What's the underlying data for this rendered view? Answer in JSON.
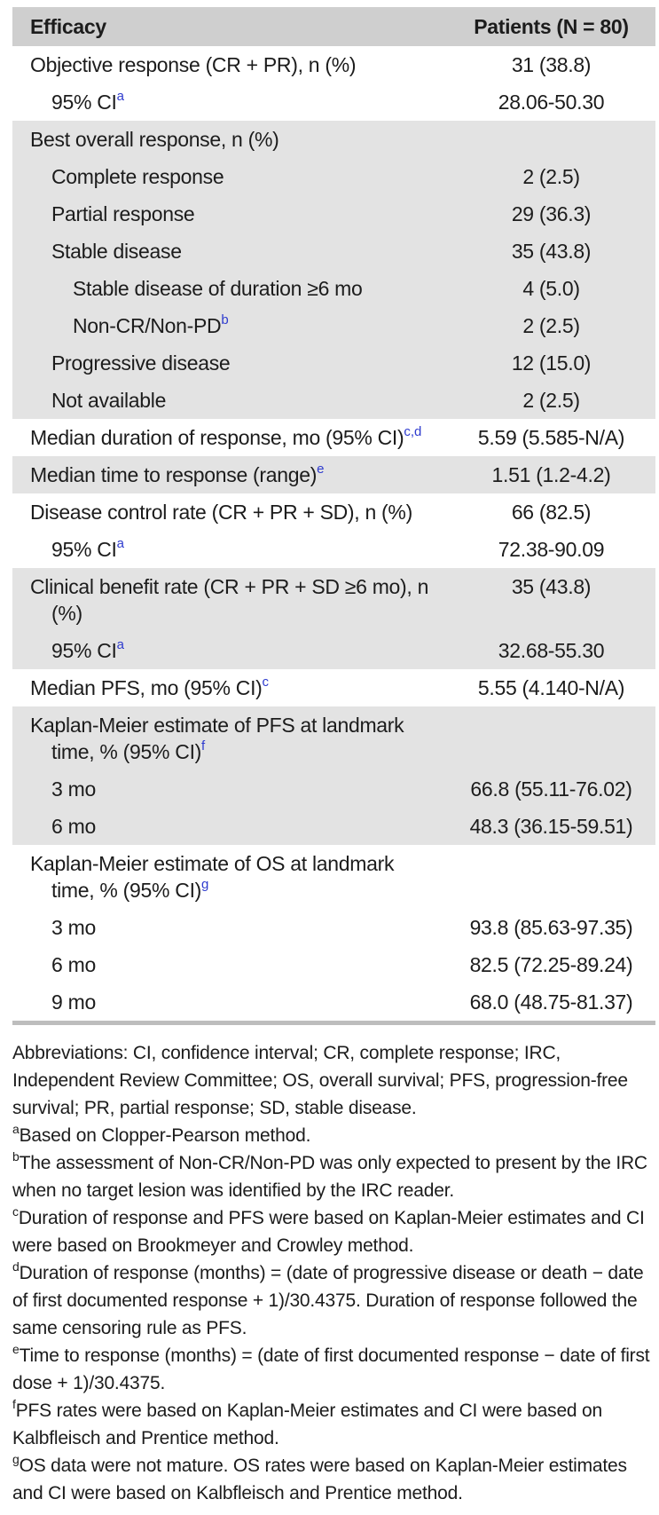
{
  "colors": {
    "header_band": "#cfcfcf",
    "section_band": "#e3e3e3",
    "bottom_rule": "#bdbdbd",
    "table_superscript": "#2e3bce",
    "text": "#1c1c1c"
  },
  "table": {
    "header": {
      "col1": "Efficacy",
      "col2": "Patients (N = 80)"
    },
    "rows": [
      {
        "label": "Objective response (CR + PR), n (%)",
        "label2": null,
        "sup": null,
        "value": "31 (38.8)",
        "indent": 0,
        "shaded": false
      },
      {
        "label": "95% CI",
        "label2": null,
        "sup": "a",
        "value": "28.06-50.30",
        "indent": 1,
        "shaded": false
      },
      {
        "label": "Best overall response, n (%)",
        "label2": null,
        "sup": null,
        "value": "",
        "indent": 0,
        "shaded": true
      },
      {
        "label": "Complete response",
        "label2": null,
        "sup": null,
        "value": "2 (2.5)",
        "indent": 1,
        "shaded": true
      },
      {
        "label": "Partial response",
        "label2": null,
        "sup": null,
        "value": "29 (36.3)",
        "indent": 1,
        "shaded": true
      },
      {
        "label": "Stable disease",
        "label2": null,
        "sup": null,
        "value": "35 (43.8)",
        "indent": 1,
        "shaded": true
      },
      {
        "label": "Stable disease of duration ≥6 mo",
        "label2": null,
        "sup": null,
        "value": "4 (5.0)",
        "indent": 2,
        "shaded": true
      },
      {
        "label": "Non-CR/Non-PD",
        "label2": null,
        "sup": "b",
        "value": "2 (2.5)",
        "indent": 2,
        "shaded": true
      },
      {
        "label": "Progressive disease",
        "label2": null,
        "sup": null,
        "value": "12 (15.0)",
        "indent": 1,
        "shaded": true
      },
      {
        "label": "Not available",
        "label2": null,
        "sup": null,
        "value": "2 (2.5)",
        "indent": 1,
        "shaded": true
      },
      {
        "label": "Median duration of response, mo (95% CI)",
        "label2": null,
        "sup": "c,d",
        "value": "5.59 (5.585-N/A)",
        "indent": 0,
        "shaded": false
      },
      {
        "label": "Median time to response (range)",
        "label2": null,
        "sup": "e",
        "value": "1.51 (1.2-4.2)",
        "indent": 0,
        "shaded": true
      },
      {
        "label": "Disease control rate (CR + PR + SD), n (%)",
        "label2": null,
        "sup": null,
        "value": "66 (82.5)",
        "indent": 0,
        "shaded": false
      },
      {
        "label": "95% CI",
        "label2": null,
        "sup": "a",
        "value": "72.38-90.09",
        "indent": 1,
        "shaded": false
      },
      {
        "label": "Clinical benefit rate (CR + PR + SD ≥6 mo), n",
        "label2": "(%)",
        "sup": null,
        "value": "35 (43.8)",
        "indent": 0,
        "shaded": true
      },
      {
        "label": "95% CI",
        "label2": null,
        "sup": "a",
        "value": "32.68-55.30",
        "indent": 1,
        "shaded": true
      },
      {
        "label": "Median PFS, mo (95% CI)",
        "label2": null,
        "sup": "c",
        "value": "5.55 (4.140-N/A)",
        "indent": 0,
        "shaded": false
      },
      {
        "label": "Kaplan-Meier estimate of PFS at landmark",
        "label2": "time, % (95% CI)",
        "sup": "f",
        "value": "",
        "indent": 0,
        "shaded": true
      },
      {
        "label": "3 mo",
        "label2": null,
        "sup": null,
        "value": "66.8 (55.11-76.02)",
        "indent": 1,
        "shaded": true
      },
      {
        "label": "6 mo",
        "label2": null,
        "sup": null,
        "value": "48.3 (36.15-59.51)",
        "indent": 1,
        "shaded": true
      },
      {
        "label": "Kaplan-Meier estimate of OS at landmark",
        "label2": "time, % (95% CI)",
        "sup": "g",
        "value": "",
        "indent": 0,
        "shaded": false
      },
      {
        "label": "3 mo",
        "label2": null,
        "sup": null,
        "value": "93.8 (85.63-97.35)",
        "indent": 1,
        "shaded": false
      },
      {
        "label": "6 mo",
        "label2": null,
        "sup": null,
        "value": "82.5 (72.25-89.24)",
        "indent": 1,
        "shaded": false
      },
      {
        "label": "9 mo",
        "label2": null,
        "sup": null,
        "value": "68.0 (48.75-81.37)",
        "indent": 1,
        "shaded": false
      }
    ]
  },
  "footnotes": {
    "abbreviations": "Abbreviations: CI, confidence interval; CR, complete response; IRC, Independent Review Committee; OS, overall survival; PFS, progression-free survival; PR, partial response; SD, stable disease.",
    "items": [
      {
        "marker": "a",
        "text": "Based on Clopper-Pearson method."
      },
      {
        "marker": "b",
        "text": "The assessment of Non-CR/Non-PD was only expected to present by the IRC when no target lesion was identified by the IRC reader."
      },
      {
        "marker": "c",
        "text": "Duration of response and PFS were based on Kaplan-Meier estimates and CI were based on Brookmeyer and Crowley method."
      },
      {
        "marker": "d",
        "text": "Duration of response (months) = (date of progressive disease or death − date of first documented response + 1)/30.4375. Duration of response followed the same censoring rule as PFS."
      },
      {
        "marker": "e",
        "text": "Time to response (months) = (date of first documented response − date of first dose + 1)/30.4375."
      },
      {
        "marker": "f",
        "text": "PFS rates were based on Kaplan-Meier estimates and CI were based on Kalbfleisch and Prentice method."
      },
      {
        "marker": "g",
        "text": "OS data were not mature. OS rates were based on Kaplan-Meier estimates and CI were based on Kalbfleisch and Prentice method."
      }
    ]
  }
}
